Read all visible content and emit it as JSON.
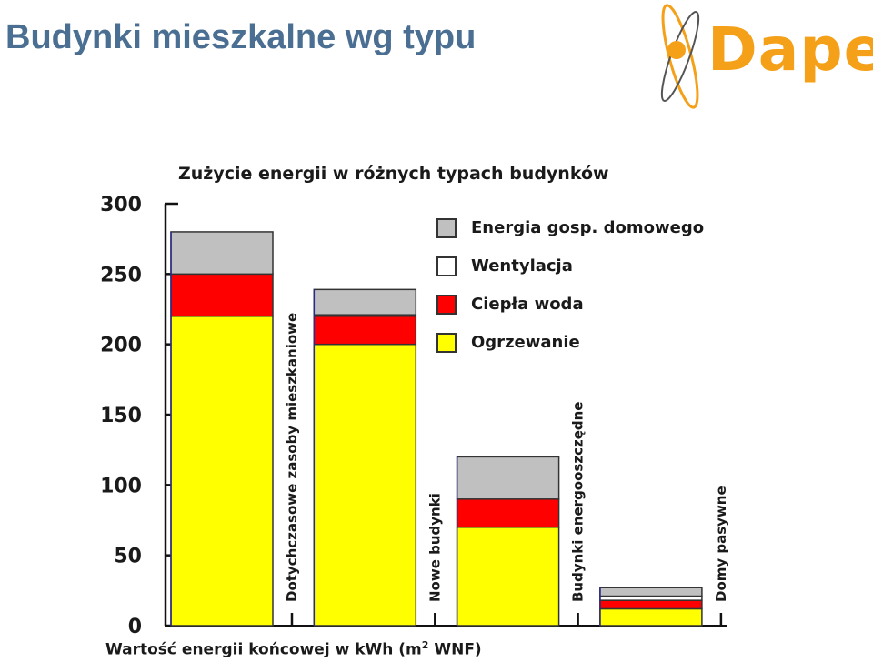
{
  "slide": {
    "title": "Budynki mieszkalne wg typu"
  },
  "logo": {
    "text": "Dape"
  },
  "chart_data": {
    "type": "bar",
    "stacked": true,
    "title": "Zużycie energii w różnych typach budynków",
    "xlabel": "Wartość energii końcowej w kWh (m",
    "xlabel_sup": "2",
    "xlabel_tail": " WNF)",
    "ylabel": "",
    "ylim": [
      0,
      300
    ],
    "yticks": [
      0,
      50,
      100,
      150,
      200,
      250,
      300
    ],
    "grid": false,
    "legend_position": "top-right",
    "categories": [
      "Dotychczasowe zasoby mieszkaniowe",
      "Nowe budynki",
      "Budynki energooszczędne",
      "Domy pasywne"
    ],
    "series": [
      {
        "name": "Ogrzewanie",
        "color": "#ffff00",
        "values": [
          220,
          200,
          70,
          12
        ]
      },
      {
        "name": "Ciepła woda",
        "color": "#ff0000",
        "values": [
          30,
          20,
          20,
          6
        ]
      },
      {
        "name": "Wentylacja",
        "color": "#ffffff",
        "values": [
          0,
          1,
          0,
          3
        ]
      },
      {
        "name": "Energia gosp. domowego",
        "color": "#c0c0c0",
        "values": [
          30,
          18,
          30,
          6
        ]
      }
    ],
    "legend": [
      {
        "name": "Energia gosp. domowego",
        "color": "#c0c0c0"
      },
      {
        "name": "Wentylacja",
        "color": "#ffffff"
      },
      {
        "name": "Ciepła woda",
        "color": "#ff0000"
      },
      {
        "name": "Ogrzewanie",
        "color": "#ffff00"
      }
    ]
  }
}
